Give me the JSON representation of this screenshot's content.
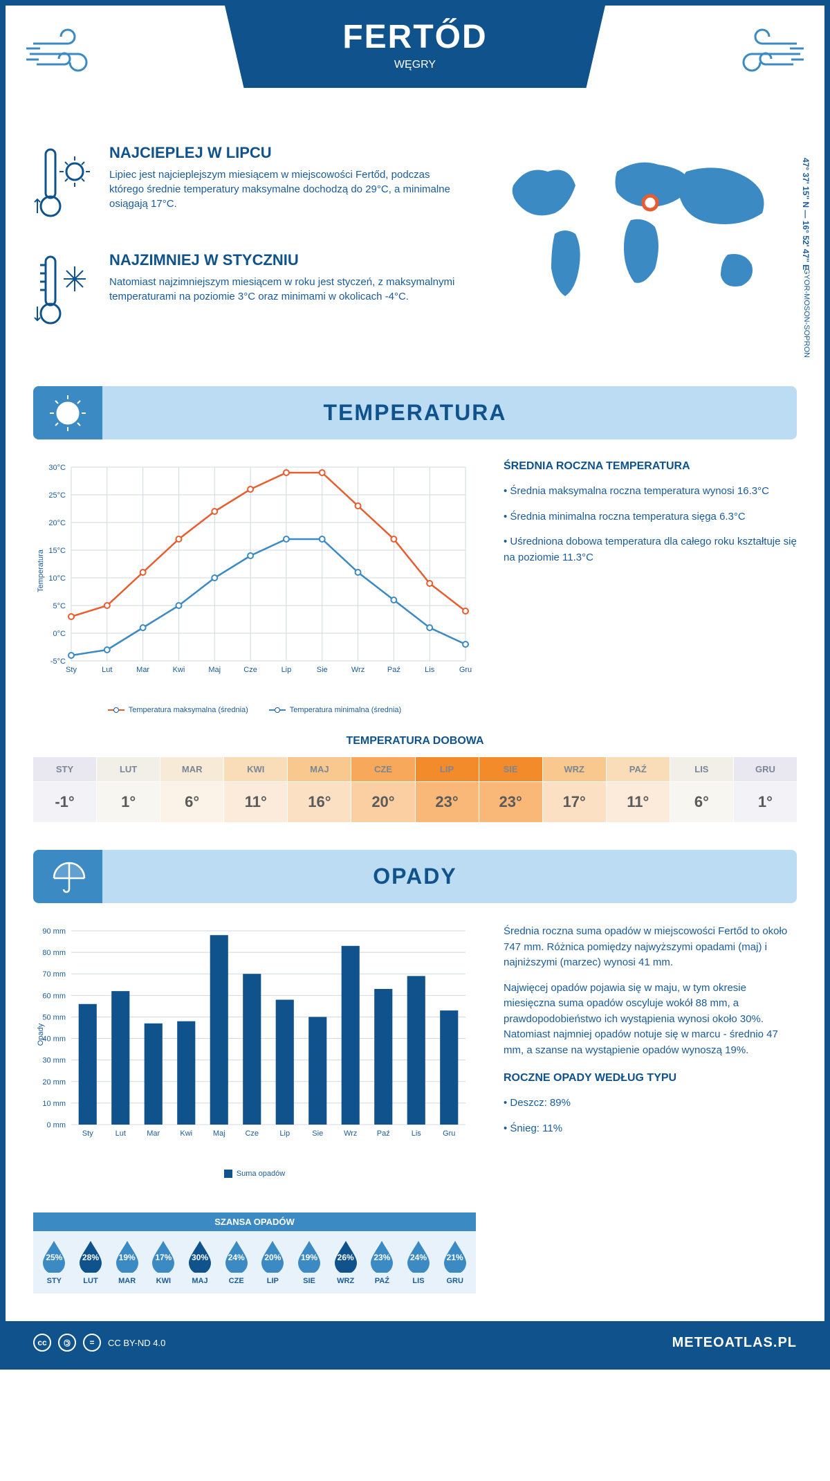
{
  "header": {
    "city": "FERTŐD",
    "country": "WĘGRY",
    "coords": "47° 37' 15'' N — 16° 52' 47'' E",
    "region": "GYOR-MOSON-SOPRON"
  },
  "hot": {
    "title": "NAJCIEPLEJ W LIPCU",
    "text": "Lipiec jest najcieplejszym miesiącem w miejscowości Fertőd, podczas którego średnie temperatury maksymalne dochodzą do 29°C, a minimalne osiągają 17°C."
  },
  "cold": {
    "title": "NAJZIMNIEJ W STYCZNIU",
    "text": "Natomiast najzimniejszym miesiącem w roku jest styczeń, z maksymalnymi temperaturami na poziomie 3°C oraz minimami w okolicach -4°C."
  },
  "temp_section": {
    "title": "TEMPERATURA",
    "avg_title": "ŚREDNIA ROCZNA TEMPERATURA",
    "b1": "• Średnia maksymalna roczna temperatura wynosi 16.3°C",
    "b2": "• Średnia minimalna roczna temperatura sięga 6.3°C",
    "b3": "• Uśredniona dobowa temperatura dla całego roku kształtuje się na poziomie 11.3°C",
    "daily_title": "TEMPERATURA DOBOWA",
    "chart": {
      "months": [
        "Sty",
        "Lut",
        "Mar",
        "Kwi",
        "Maj",
        "Cze",
        "Lip",
        "Sie",
        "Wrz",
        "Paź",
        "Lis",
        "Gru"
      ],
      "max_series": [
        3,
        5,
        11,
        17,
        22,
        26,
        29,
        29,
        23,
        17,
        9,
        4
      ],
      "min_series": [
        -4,
        -3,
        1,
        5,
        10,
        14,
        17,
        17,
        11,
        6,
        1,
        -2
      ],
      "y_min": -5,
      "y_max": 30,
      "y_step": 5,
      "max_color": "#e85d2f",
      "min_color": "#3b8ac4",
      "grid_color": "#d0d8e0",
      "axis_color": "#1a5b99",
      "y_axis_label": "Temperatura",
      "leg_max": "Temperatura maksymalna (średnia)",
      "leg_min": "Temperatura minimalna (średnia)"
    },
    "daily": {
      "months": [
        "STY",
        "LUT",
        "MAR",
        "KWI",
        "MAJ",
        "CZE",
        "LIP",
        "SIE",
        "WRZ",
        "PAŹ",
        "LIS",
        "GRU"
      ],
      "values": [
        "-1°",
        "1°",
        "6°",
        "11°",
        "16°",
        "20°",
        "23°",
        "23°",
        "17°",
        "11°",
        "6°",
        "1°"
      ],
      "header_bg": [
        "#e9e8f0",
        "#f2efe8",
        "#f7ead7",
        "#f9dcb8",
        "#f9c88e",
        "#f7a85a",
        "#f38b2a",
        "#f38b2a",
        "#f9c88e",
        "#f9dcb8",
        "#f2efe8",
        "#e9e8f0"
      ],
      "value_bg": [
        "#f3f2f7",
        "#f8f6f1",
        "#fbf3e8",
        "#fceadb",
        "#fce0c4",
        "#fbcfa2",
        "#f9b877",
        "#f9b877",
        "#fce0c4",
        "#fceadb",
        "#f8f6f1",
        "#f3f2f7"
      ]
    }
  },
  "rain_section": {
    "title": "OPADY",
    "p1": "Średnia roczna suma opadów w miejscowości Fertőd to około 747 mm. Różnica pomiędzy najwyższymi opadami (maj) i najniższymi (marzec) wynosi 41 mm.",
    "p2": "Najwięcej opadów pojawia się w maju, w tym okresie miesięczna suma opadów oscyluje wokół 88 mm, a prawdopodobieństwo ich wystąpienia wynosi około 30%. Natomiast najmniej opadów notuje się w marcu - średnio 47 mm, a szanse na wystąpienie opadów wynoszą 19%.",
    "type_title": "ROCZNE OPADY WEDŁUG TYPU",
    "type1": "• Deszcz: 89%",
    "type2": "• Śnieg: 11%",
    "chart": {
      "months": [
        "Sty",
        "Lut",
        "Mar",
        "Kwi",
        "Maj",
        "Cze",
        "Lip",
        "Sie",
        "Wrz",
        "Paź",
        "Lis",
        "Gru"
      ],
      "values": [
        56,
        62,
        47,
        48,
        88,
        70,
        58,
        50,
        83,
        63,
        69,
        53
      ],
      "y_min": 0,
      "y_max": 90,
      "y_step": 10,
      "bar_color": "#0f528c",
      "grid_color": "#d0d8e0",
      "y_axis_label": "Opady",
      "legend": "Suma opadów"
    },
    "chance": {
      "title": "SZANSA OPADÓW",
      "months": [
        "STY",
        "LUT",
        "MAR",
        "KWI",
        "MAJ",
        "CZE",
        "LIP",
        "SIE",
        "WRZ",
        "PAŹ",
        "LIS",
        "GRU"
      ],
      "pct": [
        "25%",
        "28%",
        "19%",
        "17%",
        "30%",
        "24%",
        "20%",
        "19%",
        "26%",
        "23%",
        "24%",
        "21%"
      ],
      "fill": [
        "#3b8ac4",
        "#0f528c",
        "#3b8ac4",
        "#3b8ac4",
        "#0f528c",
        "#3b8ac4",
        "#3b8ac4",
        "#3b8ac4",
        "#0f528c",
        "#3b8ac4",
        "#3b8ac4",
        "#3b8ac4"
      ]
    }
  },
  "footer": {
    "license": "CC BY-ND 4.0",
    "site": "METEOATLAS.PL"
  },
  "colors": {
    "primary": "#0f528c",
    "light": "#bcdcf4",
    "mid": "#3b8ac4"
  }
}
